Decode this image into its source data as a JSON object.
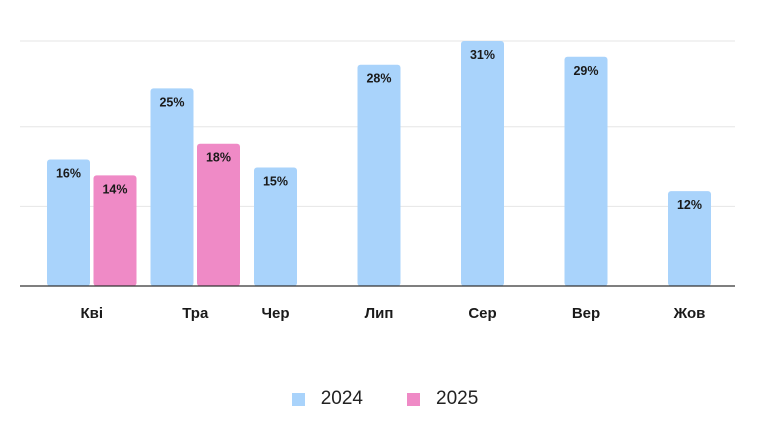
{
  "chart_data": {
    "type": "bar",
    "categories": [
      "Кві",
      "Тра",
      "Чер",
      "Лип",
      "Сер",
      "Вер",
      "Жов"
    ],
    "series": [
      {
        "name": "2024",
        "color": "#a9d3fb",
        "values": [
          16,
          25,
          15,
          28,
          31,
          29,
          12
        ],
        "labels": [
          "16%",
          "25%",
          "15%",
          "28%",
          "31%",
          "29%",
          "12%"
        ]
      },
      {
        "name": "2025",
        "color": "#ef8ac6",
        "values": [
          14,
          18,
          null,
          null,
          null,
          null,
          null
        ],
        "labels": [
          "14%",
          "18%",
          null,
          null,
          null,
          null,
          null
        ]
      }
    ],
    "ylim": [
      0,
      31
    ],
    "grid": true,
    "legend_position": "bottom-center",
    "title": "",
    "xlabel": "",
    "ylabel": ""
  }
}
